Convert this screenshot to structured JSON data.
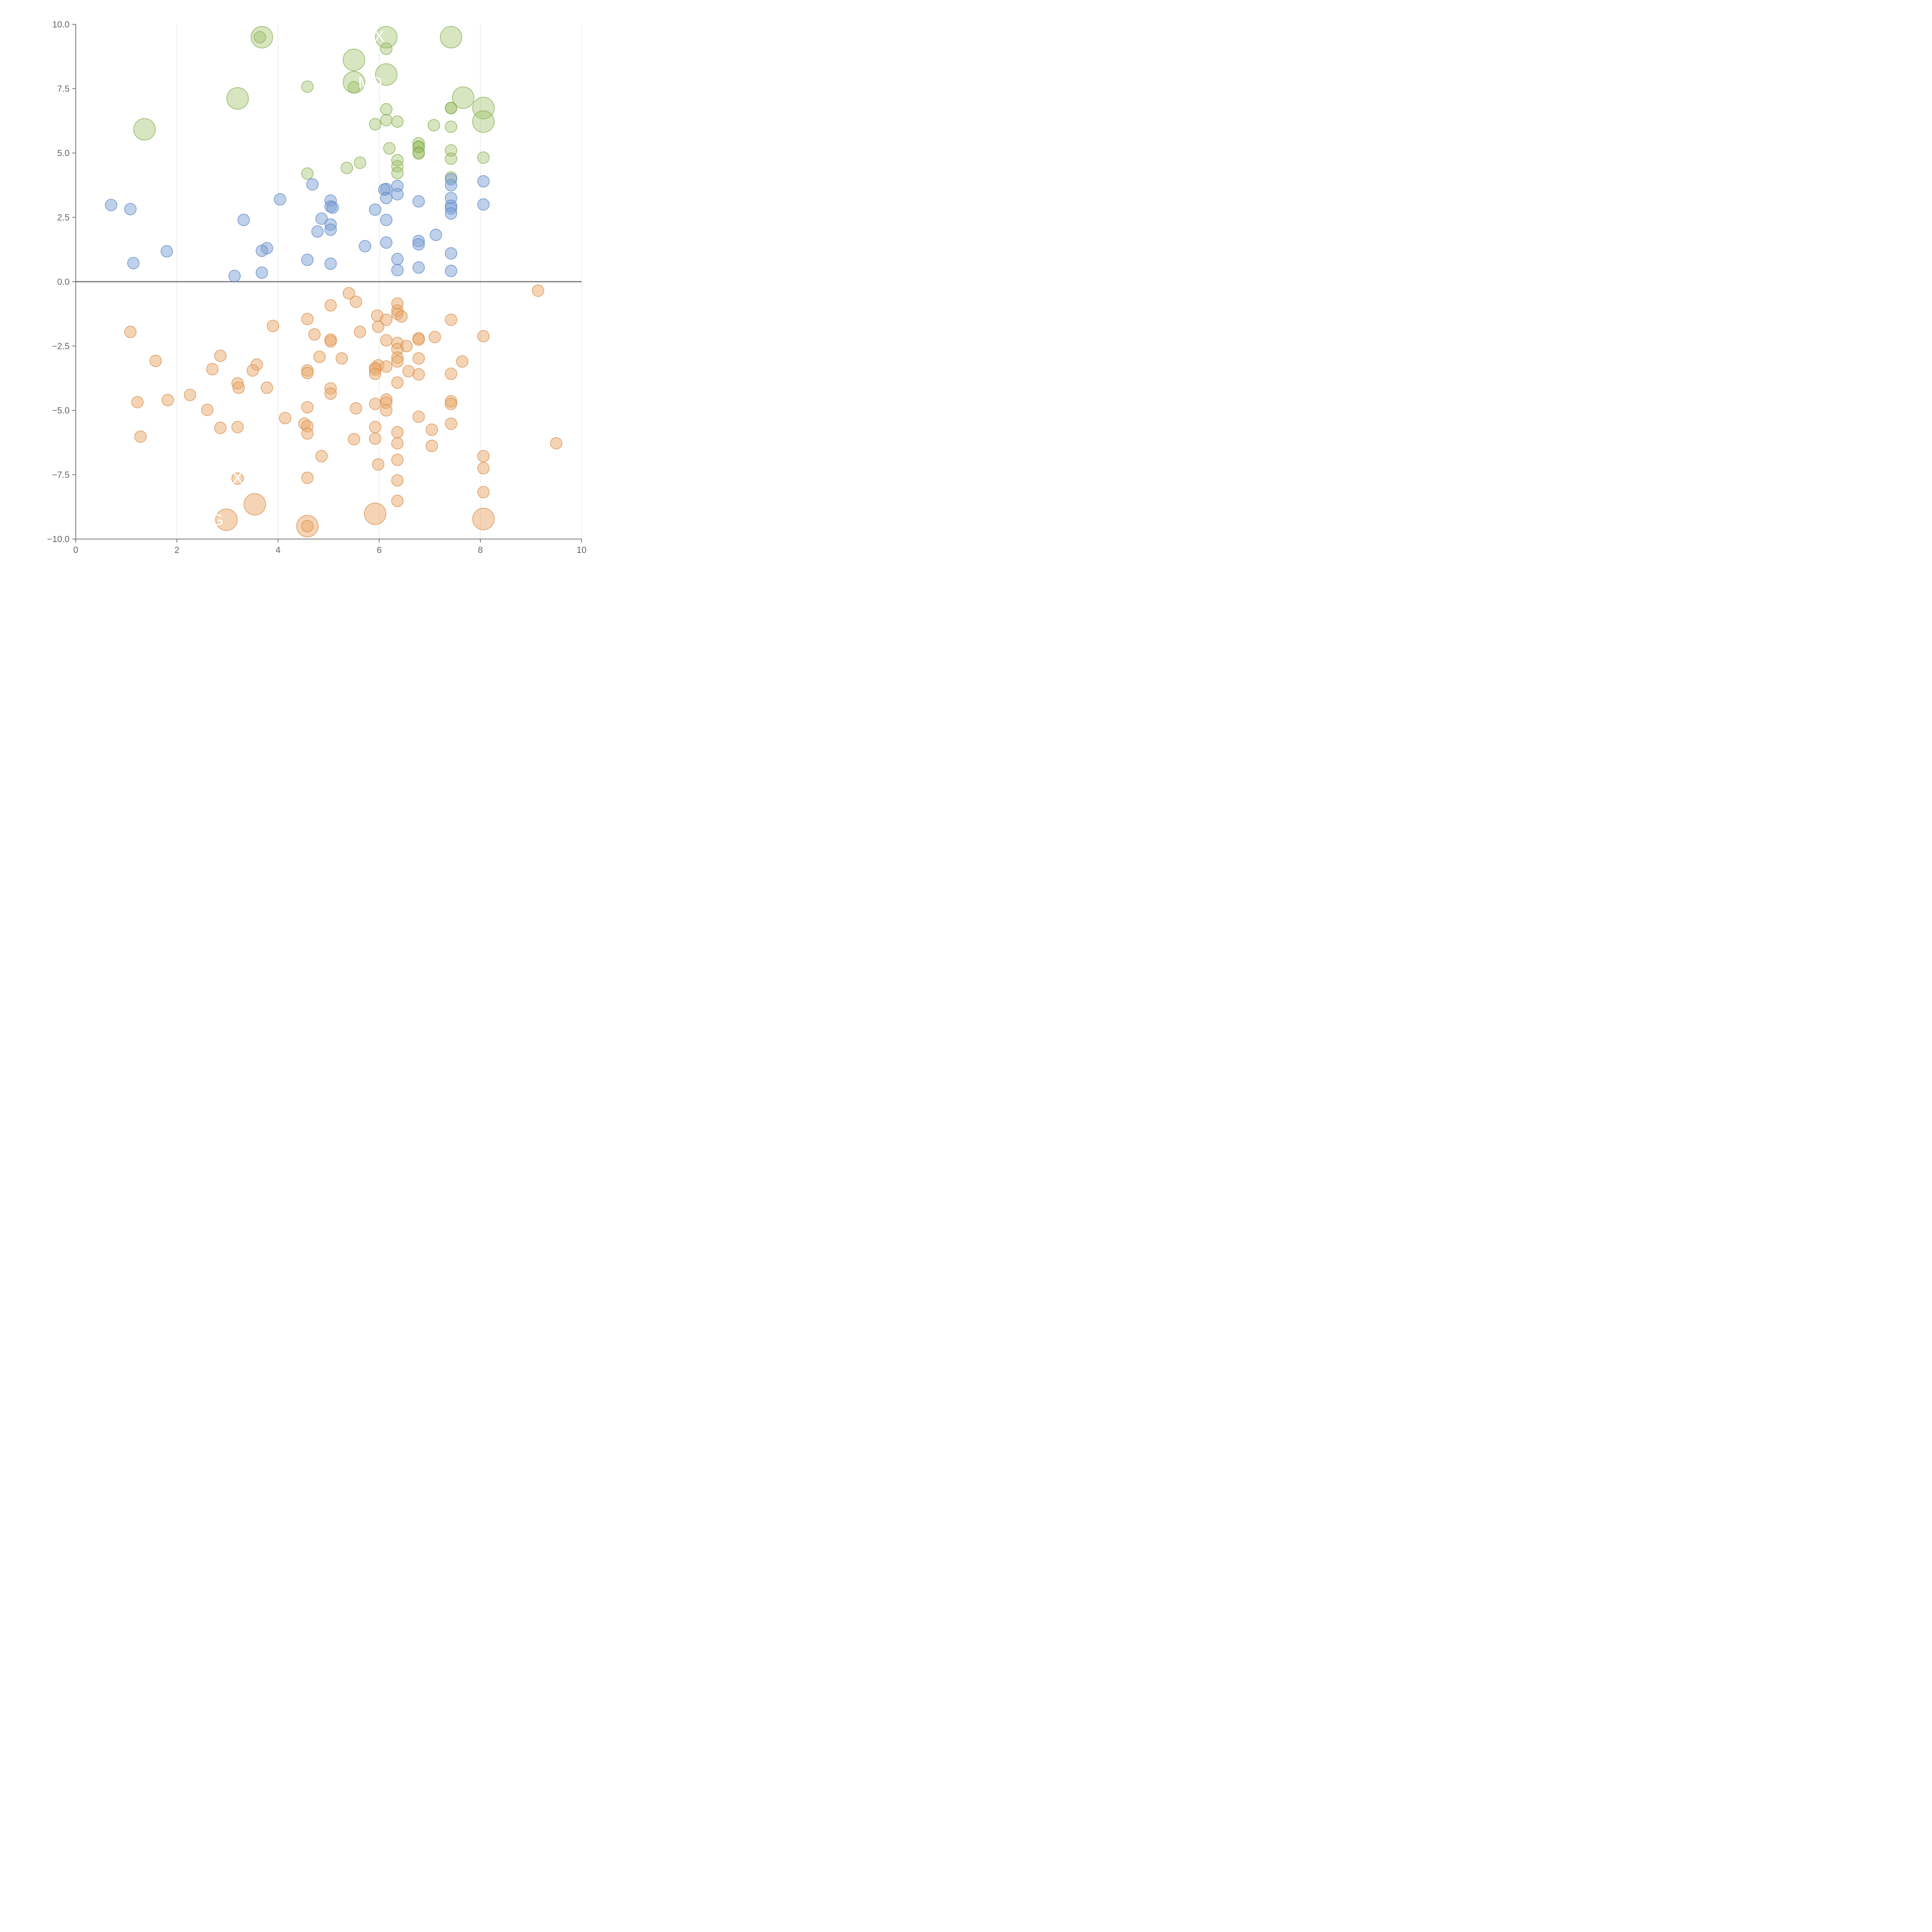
{
  "chart_data": {
    "type": "scatter",
    "title": "",
    "xlabel": "",
    "ylabel": "",
    "xlim": [
      0,
      10
    ],
    "ylim": [
      -10,
      10
    ],
    "x_ticks": [
      0,
      2,
      4,
      6,
      8,
      10
    ],
    "x_tick_labels": [
      "0",
      "2",
      "4",
      "6",
      "8",
      "10"
    ],
    "y_ticks": [
      10,
      7.5,
      5,
      2.5,
      0,
      -2.5,
      -5,
      -7.5,
      -10
    ],
    "y_tick_labels": [
      "10.0",
      "7.5",
      "5.0",
      "2.5",
      "0.0",
      "−2.5",
      "−5.0",
      "−7.5",
      "−10.0"
    ],
    "grid": "vertical",
    "reference_line_y": 0,
    "series": [
      {
        "name": "green",
        "color": "#9bbf63",
        "stroke": "#86ad4e",
        "opacity": 0.4,
        "points": [
          [
            3.68,
            9.5,
            2
          ],
          [
            3.64,
            9.5,
            1
          ],
          [
            6.14,
            9.5,
            2
          ],
          [
            7.42,
            9.5,
            2
          ],
          [
            6.14,
            9.05,
            1
          ],
          [
            5.5,
            8.62,
            2
          ],
          [
            6.14,
            8.05,
            2
          ],
          [
            5.5,
            7.75,
            2
          ],
          [
            5.5,
            7.55,
            1
          ],
          [
            4.58,
            7.58,
            1
          ],
          [
            3.2,
            7.12,
            2
          ],
          [
            7.66,
            7.15,
            2
          ],
          [
            7.42,
            6.75,
            1
          ],
          [
            7.42,
            6.75,
            1
          ],
          [
            8.06,
            6.75,
            2
          ],
          [
            8.06,
            6.22,
            2
          ],
          [
            1.36,
            5.92,
            2
          ],
          [
            6.14,
            6.7,
            1
          ],
          [
            6.14,
            6.28,
            1
          ],
          [
            6.36,
            6.22,
            1
          ],
          [
            5.92,
            6.12,
            1
          ],
          [
            7.08,
            6.08,
            1
          ],
          [
            7.42,
            6.02,
            1
          ],
          [
            6.78,
            5.38,
            1
          ],
          [
            6.78,
            5.25,
            1
          ],
          [
            6.78,
            5.22,
            1
          ],
          [
            6.2,
            5.18,
            1
          ],
          [
            7.42,
            5.1,
            1
          ],
          [
            6.78,
            5.02,
            1
          ],
          [
            6.78,
            4.98,
            1
          ],
          [
            8.06,
            4.82,
            1
          ],
          [
            7.42,
            4.78,
            1
          ],
          [
            6.36,
            4.72,
            1
          ],
          [
            5.62,
            4.62,
            1
          ],
          [
            6.36,
            4.48,
            1
          ],
          [
            5.36,
            4.42,
            1
          ],
          [
            6.36,
            4.22,
            1
          ],
          [
            4.58,
            4.2,
            1
          ],
          [
            7.42,
            4.05,
            1
          ]
        ]
      },
      {
        "name": "blue",
        "color": "#7ea2d6",
        "stroke": "#5f88c4",
        "opacity": 0.5,
        "points": [
          [
            7.42,
            3.98,
            1
          ],
          [
            8.06,
            3.9,
            1
          ],
          [
            4.68,
            3.78,
            1
          ],
          [
            7.42,
            3.75,
            1
          ],
          [
            6.36,
            3.72,
            1
          ],
          [
            6.14,
            3.6,
            1
          ],
          [
            6.1,
            3.58,
            1
          ],
          [
            6.36,
            3.4,
            1
          ],
          [
            6.14,
            3.25,
            1
          ],
          [
            7.42,
            3.25,
            1
          ],
          [
            4.04,
            3.2,
            1
          ],
          [
            5.04,
            3.15,
            1
          ],
          [
            6.78,
            3.12,
            1
          ],
          [
            0.7,
            2.98,
            1
          ],
          [
            8.06,
            3.0,
            1
          ],
          [
            7.42,
            2.95,
            1
          ],
          [
            5.04,
            2.92,
            1
          ],
          [
            5.08,
            2.88,
            1
          ],
          [
            7.42,
            2.85,
            1
          ],
          [
            1.08,
            2.82,
            1
          ],
          [
            5.92,
            2.8,
            1
          ],
          [
            7.42,
            2.65,
            1
          ],
          [
            4.86,
            2.45,
            1
          ],
          [
            3.32,
            2.4,
            1
          ],
          [
            6.14,
            2.4,
            1
          ],
          [
            5.04,
            2.22,
            1
          ],
          [
            5.04,
            2.02,
            1
          ],
          [
            4.78,
            1.95,
            1
          ],
          [
            7.12,
            1.82,
            1
          ],
          [
            6.14,
            1.52,
            1
          ],
          [
            6.78,
            1.58,
            1
          ],
          [
            6.78,
            1.45,
            1
          ],
          [
            5.72,
            1.38,
            1
          ],
          [
            3.78,
            1.3,
            1
          ],
          [
            3.68,
            1.2,
            1
          ],
          [
            1.8,
            1.18,
            1
          ],
          [
            7.42,
            1.1,
            1
          ],
          [
            6.36,
            0.88,
            1
          ],
          [
            4.58,
            0.85,
            1
          ],
          [
            1.14,
            0.72,
            1
          ],
          [
            5.04,
            0.7,
            1
          ],
          [
            6.78,
            0.55,
            1
          ],
          [
            6.36,
            0.45,
            1
          ],
          [
            7.42,
            0.42,
            1
          ],
          [
            3.68,
            0.35,
            1
          ],
          [
            3.14,
            0.22,
            1
          ]
        ]
      },
      {
        "name": "orange",
        "color": "#e9a96b",
        "stroke": "#d98f4d",
        "opacity": 0.5,
        "points": [
          [
            9.14,
            -0.35,
            1
          ],
          [
            5.4,
            -0.45,
            1
          ],
          [
            5.54,
            -0.78,
            1
          ],
          [
            6.36,
            -0.85,
            1
          ],
          [
            5.04,
            -0.92,
            1
          ],
          [
            6.36,
            -1.12,
            1
          ],
          [
            6.36,
            -1.25,
            1
          ],
          [
            5.96,
            -1.32,
            1
          ],
          [
            6.44,
            -1.35,
            1
          ],
          [
            4.58,
            -1.45,
            1
          ],
          [
            6.14,
            -1.48,
            1
          ],
          [
            7.42,
            -1.48,
            1
          ],
          [
            3.9,
            -1.72,
            1
          ],
          [
            5.98,
            -1.75,
            1
          ],
          [
            1.08,
            -1.95,
            1
          ],
          [
            5.62,
            -1.95,
            1
          ],
          [
            4.72,
            -2.05,
            1
          ],
          [
            8.06,
            -2.12,
            1
          ],
          [
            7.1,
            -2.15,
            1
          ],
          [
            6.78,
            -2.2,
            1
          ],
          [
            6.78,
            -2.25,
            1
          ],
          [
            5.04,
            -2.25,
            1
          ],
          [
            5.04,
            -2.32,
            1
          ],
          [
            6.14,
            -2.28,
            1
          ],
          [
            6.36,
            -2.38,
            1
          ],
          [
            6.54,
            -2.5,
            1
          ],
          [
            6.36,
            -2.62,
            1
          ],
          [
            2.86,
            -2.88,
            1
          ],
          [
            4.82,
            -2.92,
            1
          ],
          [
            6.36,
            -2.95,
            1
          ],
          [
            6.78,
            -2.98,
            1
          ],
          [
            5.26,
            -2.98,
            1
          ],
          [
            6.36,
            -3.1,
            1
          ],
          [
            1.58,
            -3.08,
            1
          ],
          [
            7.64,
            -3.1,
            1
          ],
          [
            3.58,
            -3.22,
            1
          ],
          [
            5.98,
            -3.25,
            1
          ],
          [
            6.14,
            -3.3,
            1
          ],
          [
            5.92,
            -3.35,
            1
          ],
          [
            2.7,
            -3.4,
            1
          ],
          [
            5.92,
            -3.42,
            1
          ],
          [
            3.5,
            -3.45,
            1
          ],
          [
            4.58,
            -3.45,
            1
          ],
          [
            6.58,
            -3.48,
            1
          ],
          [
            4.58,
            -3.55,
            1
          ],
          [
            5.92,
            -3.58,
            1
          ],
          [
            7.42,
            -3.58,
            1
          ],
          [
            6.78,
            -3.6,
            1
          ],
          [
            6.36,
            -3.92,
            1
          ],
          [
            3.2,
            -3.95,
            1
          ],
          [
            3.22,
            -4.12,
            1
          ],
          [
            3.78,
            -4.12,
            1
          ],
          [
            5.04,
            -4.15,
            1
          ],
          [
            5.04,
            -4.35,
            1
          ],
          [
            2.26,
            -4.4,
            1
          ],
          [
            1.82,
            -4.6,
            1
          ],
          [
            6.14,
            -4.58,
            1
          ],
          [
            7.42,
            -4.65,
            1
          ],
          [
            1.22,
            -4.68,
            1
          ],
          [
            6.14,
            -4.7,
            1
          ],
          [
            5.92,
            -4.75,
            1
          ],
          [
            7.42,
            -4.75,
            1
          ],
          [
            4.58,
            -4.88,
            1
          ],
          [
            5.54,
            -4.92,
            1
          ],
          [
            2.6,
            -4.98,
            1
          ],
          [
            6.14,
            -5.0,
            1
          ],
          [
            6.78,
            -5.25,
            1
          ],
          [
            4.14,
            -5.3,
            1
          ],
          [
            7.42,
            -5.52,
            1
          ],
          [
            4.52,
            -5.52,
            1
          ],
          [
            4.58,
            -5.62,
            1
          ],
          [
            2.86,
            -5.68,
            1
          ],
          [
            3.2,
            -5.65,
            1
          ],
          [
            5.92,
            -5.65,
            1
          ],
          [
            7.04,
            -5.75,
            1
          ],
          [
            6.36,
            -5.85,
            1
          ],
          [
            4.58,
            -5.9,
            1
          ],
          [
            1.28,
            -6.02,
            1
          ],
          [
            5.5,
            -6.12,
            1
          ],
          [
            5.92,
            -6.1,
            1
          ],
          [
            6.36,
            -6.28,
            1
          ],
          [
            9.5,
            -6.28,
            1
          ],
          [
            7.04,
            -6.38,
            1
          ],
          [
            4.86,
            -6.78,
            1
          ],
          [
            8.06,
            -6.78,
            1
          ],
          [
            6.36,
            -6.92,
            1
          ],
          [
            5.98,
            -7.1,
            1
          ],
          [
            8.06,
            -7.25,
            1
          ],
          [
            4.58,
            -7.62,
            1
          ],
          [
            3.2,
            -7.65,
            1
          ],
          [
            6.36,
            -7.72,
            1
          ],
          [
            8.06,
            -8.18,
            1
          ],
          [
            6.36,
            -8.52,
            1
          ],
          [
            3.54,
            -8.65,
            2
          ],
          [
            5.92,
            -9.02,
            2
          ],
          [
            2.98,
            -9.25,
            2
          ],
          [
            8.06,
            -9.22,
            2
          ],
          [
            4.58,
            -9.5,
            2
          ],
          [
            4.58,
            -9.5,
            1
          ]
        ]
      }
    ],
    "annotations": [
      {
        "text": "X",
        "x": 6.0,
        "y": 9.55,
        "series": "green"
      },
      {
        "text": "MD",
        "x": 5.82,
        "y": 7.75,
        "series": "green"
      },
      {
        "text": "G",
        "x": 2.8,
        "y": -9.25,
        "series": "orange"
      },
      {
        "text": "X",
        "x": 3.2,
        "y": -7.62,
        "series": "orange"
      }
    ]
  }
}
